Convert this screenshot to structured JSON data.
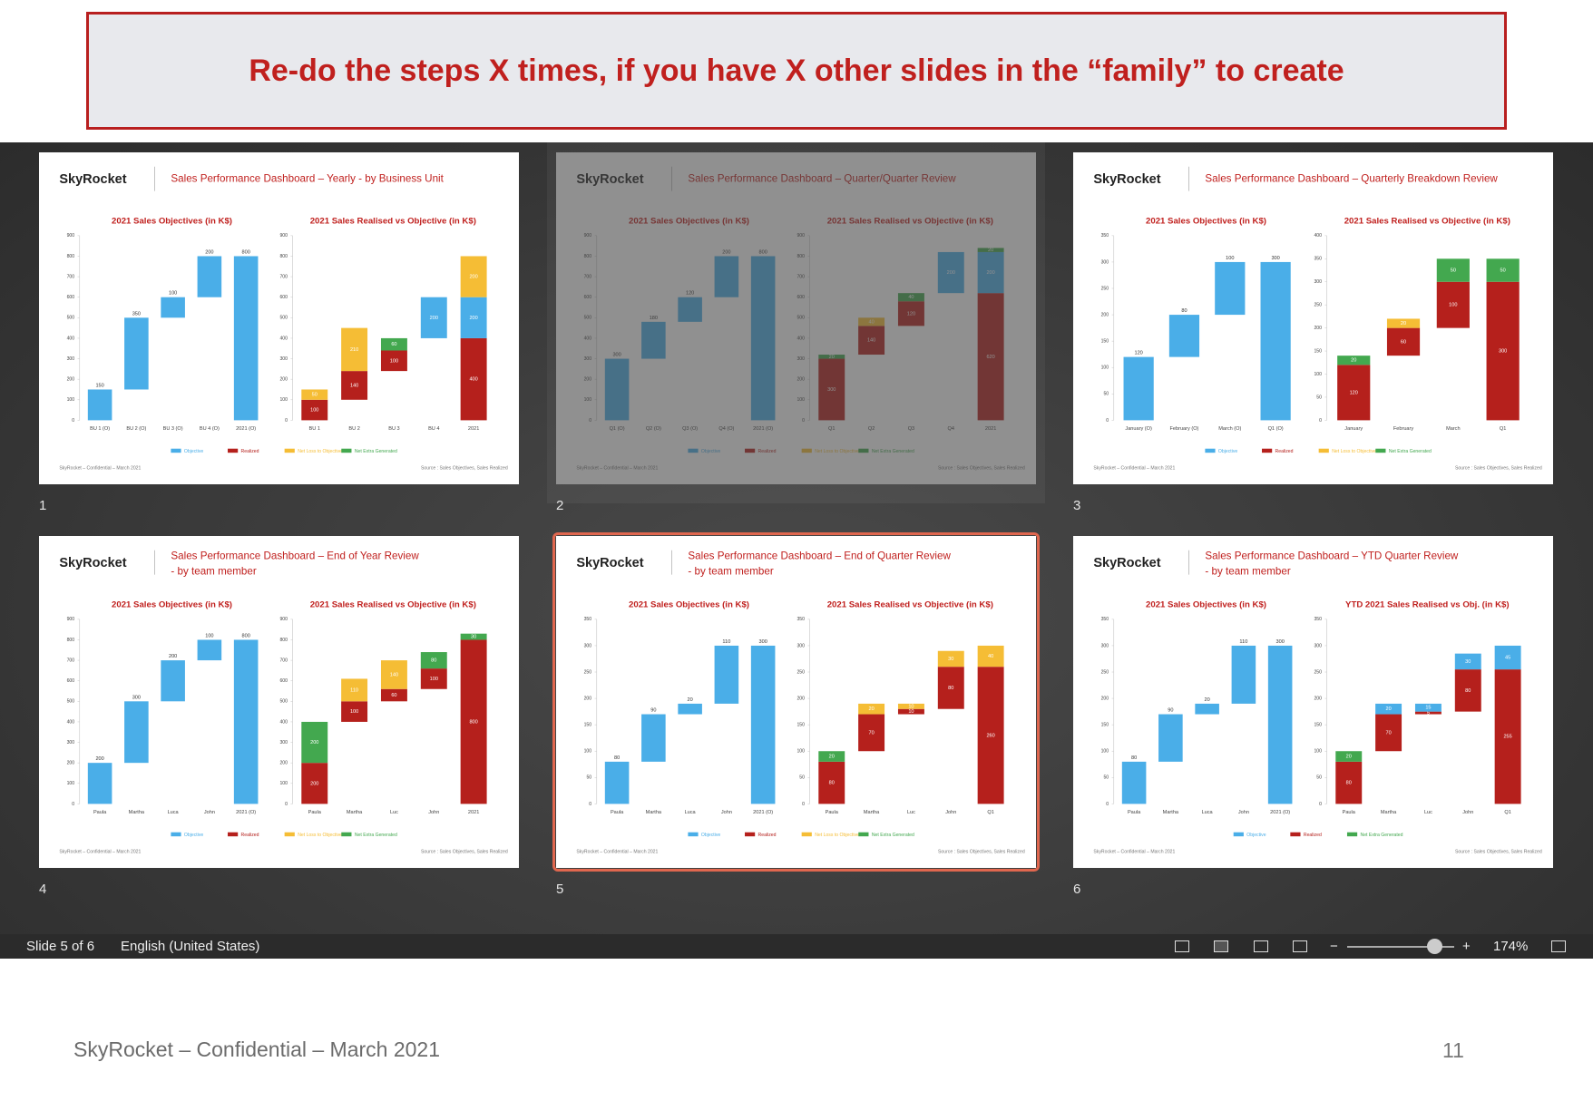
{
  "banner": "Re-do the steps X times, if you have X other slides in the “family” to create",
  "slides": [
    {
      "number": "1",
      "logo": "SkyRocket",
      "title": "Sales Performance Dashboard – Yearly - by Business Unit",
      "left": {
        "type": "waterfall",
        "title": "2021 Sales Objectives (in K$)",
        "color": "#4aaee8",
        "ylim": [
          0,
          900
        ],
        "yticks": [
          0,
          100,
          200,
          300,
          400,
          500,
          600,
          700,
          800,
          900
        ],
        "categories": [
          "BU 1 (O)",
          "BU 2 (O)",
          "BU 3 (O)",
          "BU 4 (O)",
          "2021 (O)"
        ],
        "values": [
          150,
          350,
          100,
          200,
          800
        ]
      },
      "right": {
        "type": "stacked-waterfall",
        "title": "2021 Sales Realised vs Objective (in K$)",
        "ylim": [
          0,
          900
        ],
        "yticks": [
          0,
          100,
          200,
          300,
          400,
          500,
          600,
          700,
          800,
          900
        ],
        "categories": [
          "BU 1",
          "BU 2",
          "BU 3",
          "BU 4",
          "2021"
        ],
        "series": [
          {
            "name": "Objective",
            "color": "#4aaee8",
            "values": [
              null,
              null,
              null,
              200,
              200
            ]
          },
          {
            "name": "Realized",
            "color": "#b5201c",
            "values": [
              100,
              140,
              100,
              null,
              400
            ]
          },
          {
            "name": "Net Loss to Objective",
            "color": "#f5bd35",
            "values": [
              50,
              210,
              null,
              null,
              200
            ]
          },
          {
            "name": "Net Extra Generated",
            "color": "#43a84f",
            "values": [
              null,
              null,
              60,
              null,
              null
            ]
          }
        ]
      },
      "footer_left": "SkyRocket – Confidential – March 2021",
      "footer_right": "Source : Sales Objectives, Sales Realized"
    },
    {
      "number": "2",
      "logo": "SkyRocket",
      "title": "Sales Performance Dashboard – Quarter/Quarter Review",
      "left": {
        "type": "waterfall",
        "title": "2021 Sales Objectives (in K$)",
        "color": "#4aaee8",
        "ylim": [
          0,
          900
        ],
        "yticks": [
          0,
          100,
          200,
          300,
          400,
          500,
          600,
          700,
          800,
          900
        ],
        "categories": [
          "Q1 (O)",
          "Q2 (O)",
          "Q3 (O)",
          "Q4 (O)",
          "2021 (O)"
        ],
        "values": [
          300,
          180,
          120,
          200,
          800
        ]
      },
      "right": {
        "type": "stacked-waterfall",
        "title": "2021 Sales Realised vs Objective (in K$)",
        "ylim": [
          0,
          900
        ],
        "yticks": [
          0,
          100,
          200,
          300,
          400,
          500,
          600,
          700,
          800,
          900
        ],
        "categories": [
          "Q1",
          "Q2",
          "Q3",
          "Q4",
          "2021"
        ],
        "series": [
          {
            "name": "Objective",
            "color": "#4aaee8",
            "values": [
              null,
              null,
              null,
              200,
              200
            ]
          },
          {
            "name": "Realized",
            "color": "#b5201c",
            "values": [
              300,
              140,
              120,
              null,
              620
            ]
          },
          {
            "name": "Net Loss to Objective",
            "color": "#f5bd35",
            "values": [
              null,
              40,
              null,
              null,
              null
            ]
          },
          {
            "name": "Net Extra Generated",
            "color": "#43a84f",
            "values": [
              20,
              null,
              40,
              null,
              20
            ]
          }
        ]
      },
      "footer_left": "SkyRocket – Confidential – March 2021",
      "footer_right": "Source : Sales Objectives, Sales Realized"
    },
    {
      "number": "3",
      "logo": "SkyRocket",
      "title": "Sales Performance Dashboard – Quarterly Breakdown Review",
      "left": {
        "type": "waterfall",
        "title": "2021 Sales Objectives (in K$)",
        "color": "#4aaee8",
        "ylim": [
          0,
          350
        ],
        "yticks": [
          0,
          50,
          100,
          150,
          200,
          250,
          300,
          350
        ],
        "categories": [
          "January (O)",
          "February (O)",
          "March (O)",
          "Q1 (O)"
        ],
        "values": [
          120,
          80,
          100,
          300
        ]
      },
      "right": {
        "type": "stacked-waterfall",
        "title": "2021 Sales Realised vs Objective (in K$)",
        "ylim": [
          0,
          400
        ],
        "yticks": [
          0,
          50,
          100,
          150,
          200,
          250,
          300,
          350,
          400
        ],
        "categories": [
          "January",
          "February",
          "March",
          "Q1"
        ],
        "series": [
          {
            "name": "Objective",
            "color": "#4aaee8",
            "values": [
              null,
              null,
              null,
              null
            ]
          },
          {
            "name": "Realized",
            "color": "#b5201c",
            "values": [
              120,
              60,
              100,
              300
            ]
          },
          {
            "name": "Net Loss to Objective",
            "color": "#f5bd35",
            "values": [
              null,
              20,
              null,
              null
            ]
          },
          {
            "name": "Net Extra Generated",
            "color": "#43a84f",
            "values": [
              20,
              null,
              50,
              50
            ]
          }
        ]
      },
      "footer_left": "SkyRocket – Confidential – March 2021",
      "footer_right": "Source : Sales Objectives, Sales Realized"
    },
    {
      "number": "4",
      "logo": "SkyRocket",
      "title": "Sales Performance Dashboard – End of Year Review",
      "subtitle": "- by team member",
      "left": {
        "type": "waterfall",
        "title": "2021 Sales Objectives (in K$)",
        "color": "#4aaee8",
        "ylim": [
          0,
          900
        ],
        "yticks": [
          0,
          100,
          200,
          300,
          400,
          500,
          600,
          700,
          800,
          900
        ],
        "categories": [
          "Paula",
          "Martha",
          "Luca",
          "John",
          "2021 (O)"
        ],
        "values": [
          200,
          300,
          200,
          100,
          800
        ]
      },
      "right": {
        "type": "stacked-waterfall",
        "title": "2021 Sales Realised vs Objective (in K$)",
        "ylim": [
          0,
          900
        ],
        "yticks": [
          0,
          100,
          200,
          300,
          400,
          500,
          600,
          700,
          800,
          900
        ],
        "categories": [
          "Paula",
          "Martha",
          "Luc",
          "John",
          "2021"
        ],
        "series": [
          {
            "name": "Objective",
            "color": "#4aaee8",
            "values": [
              null,
              null,
              null,
              null,
              null
            ]
          },
          {
            "name": "Realized",
            "color": "#b5201c",
            "values": [
              200,
              100,
              60,
              100,
              800
            ]
          },
          {
            "name": "Net Loss to Objective",
            "color": "#f5bd35",
            "values": [
              null,
              110,
              140,
              null,
              null
            ]
          },
          {
            "name": "Net Extra Generated",
            "color": "#43a84f",
            "values": [
              200,
              null,
              null,
              80,
              30
            ]
          }
        ]
      },
      "footer_left": "SkyRocket – Confidential – March 2021",
      "footer_right": "Source : Sales Objectives, Sales Realized"
    },
    {
      "number": "5",
      "logo": "SkyRocket",
      "title": "Sales Performance Dashboard – End of Quarter Review",
      "subtitle": "- by team member",
      "left": {
        "type": "waterfall",
        "title": "2021 Sales Objectives (in K$)",
        "color": "#4aaee8",
        "ylim": [
          0,
          350
        ],
        "yticks": [
          0,
          50,
          100,
          150,
          200,
          250,
          300,
          350
        ],
        "categories": [
          "Paula",
          "Martha",
          "Luca",
          "John",
          "2021 (O)"
        ],
        "values": [
          80,
          90,
          20,
          110,
          300
        ]
      },
      "right": {
        "type": "stacked-waterfall",
        "title": "2021 Sales Realised vs Objective (in K$)",
        "ylim": [
          0,
          350
        ],
        "yticks": [
          0,
          50,
          100,
          150,
          200,
          250,
          300,
          350
        ],
        "categories": [
          "Paula",
          "Martha",
          "Luc",
          "John",
          "Q1"
        ],
        "series": [
          {
            "name": "Objective",
            "color": "#4aaee8",
            "values": [
              null,
              null,
              null,
              null,
              null
            ]
          },
          {
            "name": "Realized",
            "color": "#b5201c",
            "values": [
              80,
              70,
              10,
              80,
              260
            ]
          },
          {
            "name": "Net Loss to Objective",
            "color": "#f5bd35",
            "values": [
              null,
              20,
              10,
              30,
              40
            ]
          },
          {
            "name": "Net Extra Generated",
            "color": "#43a84f",
            "values": [
              20,
              null,
              null,
              null,
              null
            ]
          }
        ]
      },
      "footer_left": "SkyRocket – Confidential – March 2021",
      "footer_right": "Source : Sales Objectives, Sales Realized"
    },
    {
      "number": "6",
      "logo": "SkyRocket",
      "title": "Sales Performance Dashboard – YTD Quarter Review",
      "subtitle": "- by team member",
      "left": {
        "type": "waterfall",
        "title": "2021 Sales Objectives (in K$)",
        "color": "#4aaee8",
        "ylim": [
          0,
          350
        ],
        "yticks": [
          0,
          50,
          100,
          150,
          200,
          250,
          300,
          350
        ],
        "categories": [
          "Paula",
          "Martha",
          "Luca",
          "John",
          "2021 (O)"
        ],
        "values": [
          80,
          90,
          20,
          110,
          300
        ]
      },
      "right": {
        "type": "stacked-waterfall",
        "title": "YTD 2021 Sales Realised vs Obj. (in K$)",
        "ylim": [
          0,
          350
        ],
        "yticks": [
          0,
          50,
          100,
          150,
          200,
          250,
          300,
          350
        ],
        "categories": [
          "Paula",
          "Martha",
          "Luc",
          "John",
          "Q1"
        ],
        "series": [
          {
            "name": "Objective",
            "color": "#4aaee8",
            "values": [
              null,
              20,
              15,
              30,
              45
            ]
          },
          {
            "name": "Realized",
            "color": "#b5201c",
            "values": [
              80,
              70,
              5,
              80,
              255
            ]
          },
          {
            "name": "Net Extra Generated",
            "color": "#43a84f",
            "values": [
              20,
              null,
              null,
              null,
              null
            ]
          }
        ]
      },
      "footer_left": "SkyRocket – Confidential – March 2021",
      "footer_right": "Source : Sales Objectives, Sales Realized"
    }
  ],
  "status_bar": {
    "slide": "Slide 5 of 6",
    "language": "English (United States)",
    "zoom": "174%"
  },
  "footer": {
    "text": "SkyRocket – Confidential – March 2021",
    "page": "11"
  }
}
